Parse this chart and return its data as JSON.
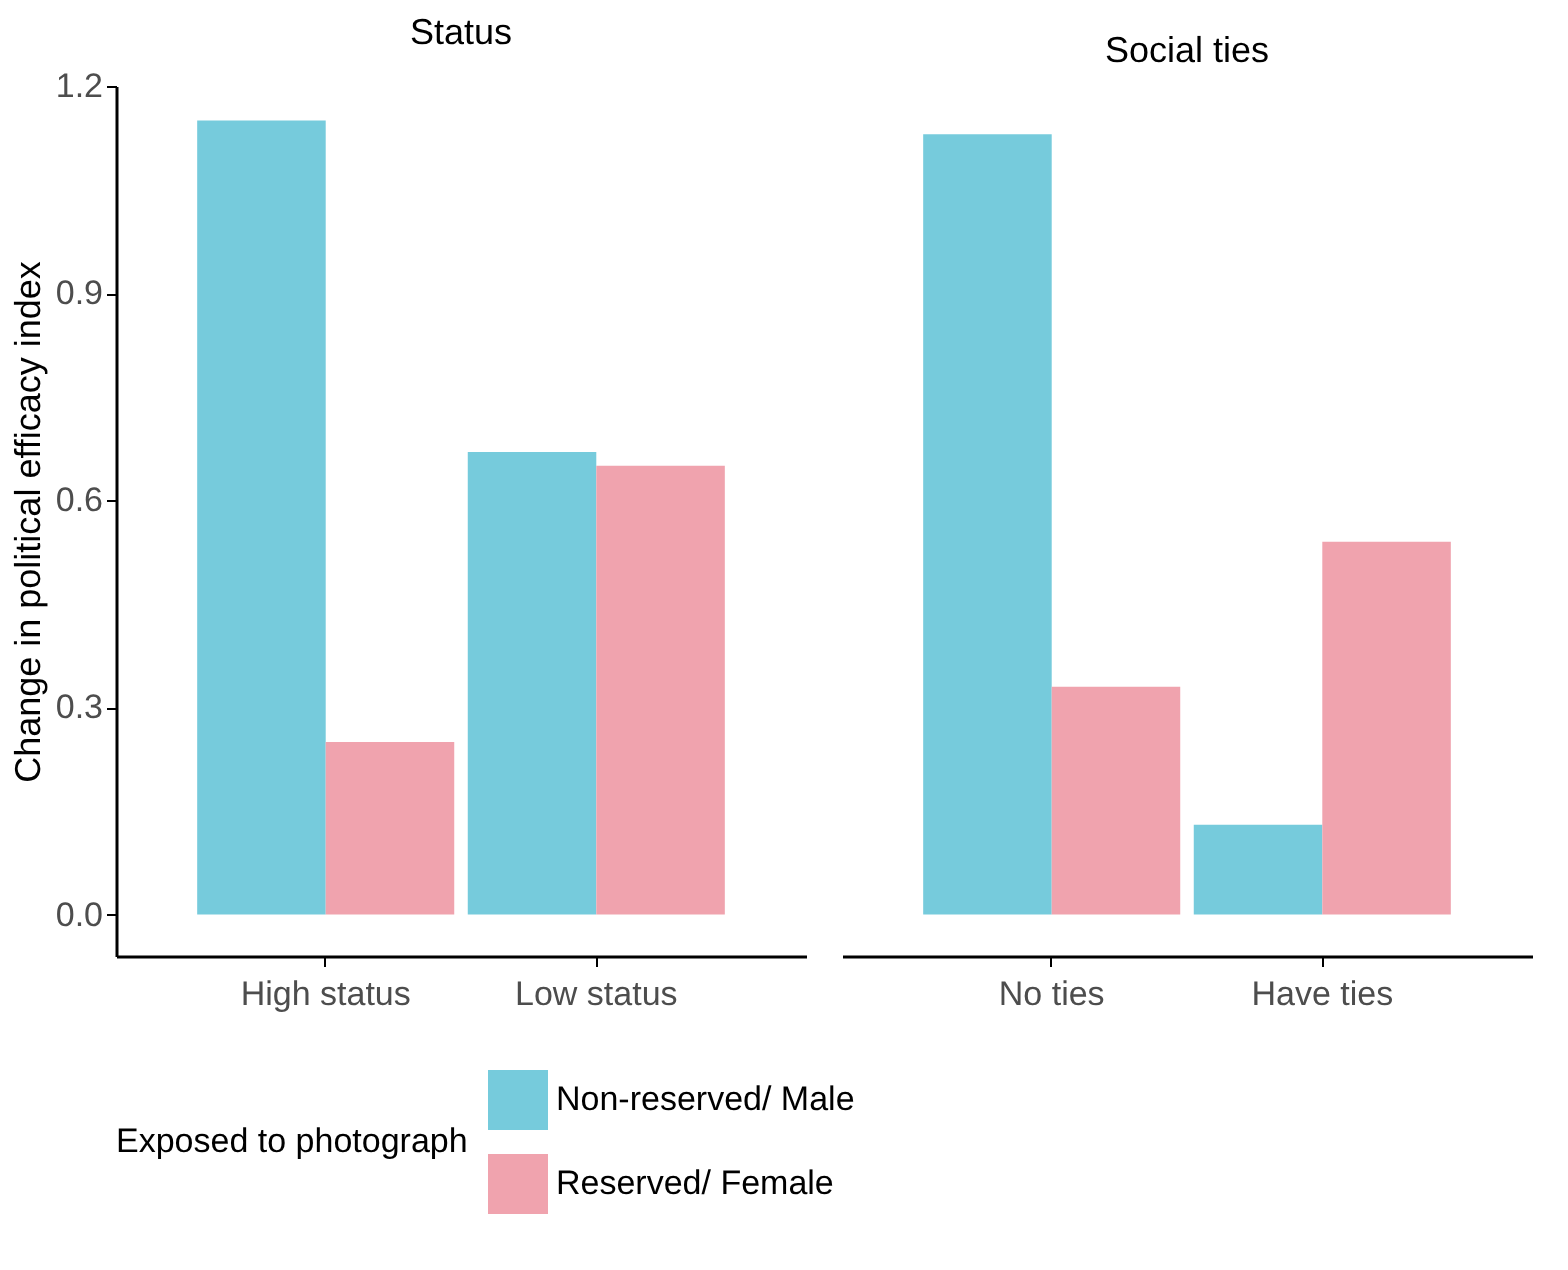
{
  "chart_data": [
    {
      "type": "bar",
      "title": "Status",
      "ylabel": "Change in political efficacy index",
      "categories": [
        "High status",
        "Low status"
      ],
      "series": [
        {
          "name": "Non-reserved/ Male",
          "color": "#76cbdc",
          "values": [
            1.15,
            0.67
          ]
        },
        {
          "name": "Reserved/ Female",
          "color": "#f0a3ae",
          "values": [
            0.25,
            0.65
          ]
        }
      ],
      "ylim": [
        -0.06,
        1.2
      ],
      "yticks": [
        {
          "value": 0,
          "label": "0.0"
        },
        0.3,
        0.6,
        0.9,
        1.2
      ],
      "legend": "bottom",
      "legend_title": "Exposed to photograph",
      "grid": false
    },
    {
      "type": "bar",
      "title": "Social ties",
      "categories": [
        "No ties",
        "Have ties"
      ],
      "series": [
        {
          "name": "Non-reserved/ Male",
          "color": "#76cbdc",
          "values": [
            1.13,
            0.13
          ]
        },
        {
          "name": "Reserved/ Female",
          "color": "#f0a3ae",
          "values": [
            0.33,
            0.54
          ]
        }
      ],
      "ylim": [
        -0.06,
        1.2
      ],
      "tick_labels": "x",
      "grid": false
    }
  ]
}
